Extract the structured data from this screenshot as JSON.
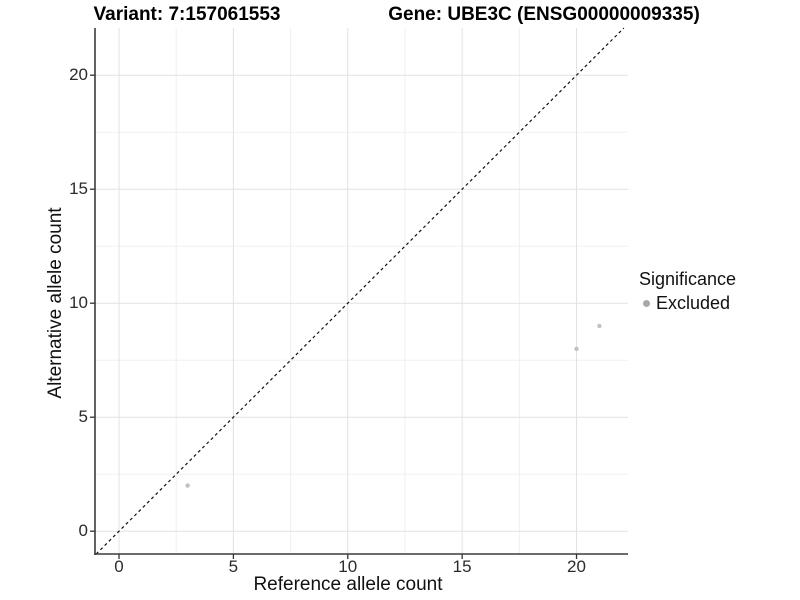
{
  "titles": {
    "left": "Variant: 7:157061553",
    "right": "Gene: UBE3C (ENSG00000009335)"
  },
  "chart_data": {
    "type": "scatter",
    "xlabel": "Reference allele count",
    "ylabel": "Alternative allele count",
    "xlim": [
      -1.05,
      22.25
    ],
    "ylim": [
      -1.0,
      22.07
    ],
    "xticks": [
      0,
      5,
      10,
      15,
      20
    ],
    "yticks": [
      0,
      5,
      10,
      15,
      20
    ],
    "minor_xticks": [
      2.5,
      7.5,
      12.5,
      17.5
    ],
    "minor_yticks": [
      2.5,
      7.5,
      12.5,
      17.5
    ],
    "grid": "major+minor",
    "identity_line": {
      "style": "dashed",
      "equation": "y = x",
      "color": "#111111"
    },
    "series": [
      {
        "name": "Excluded",
        "color": "#c1c1c1",
        "points": [
          {
            "x": 3,
            "y": 2
          },
          {
            "x": 20,
            "y": 8
          },
          {
            "x": 21,
            "y": 9
          }
        ]
      }
    ],
    "legend": {
      "position": "right",
      "title": "Significance",
      "entries": [
        {
          "label": "Excluded",
          "color": "#a8a8a8"
        }
      ]
    },
    "colors": {
      "grid_major": "#e2e2e2",
      "grid_minor": "#f0f0f0",
      "axis_line": "#3c3c3c",
      "tick_mark": "#333333",
      "point": "#c1c1c1"
    }
  }
}
